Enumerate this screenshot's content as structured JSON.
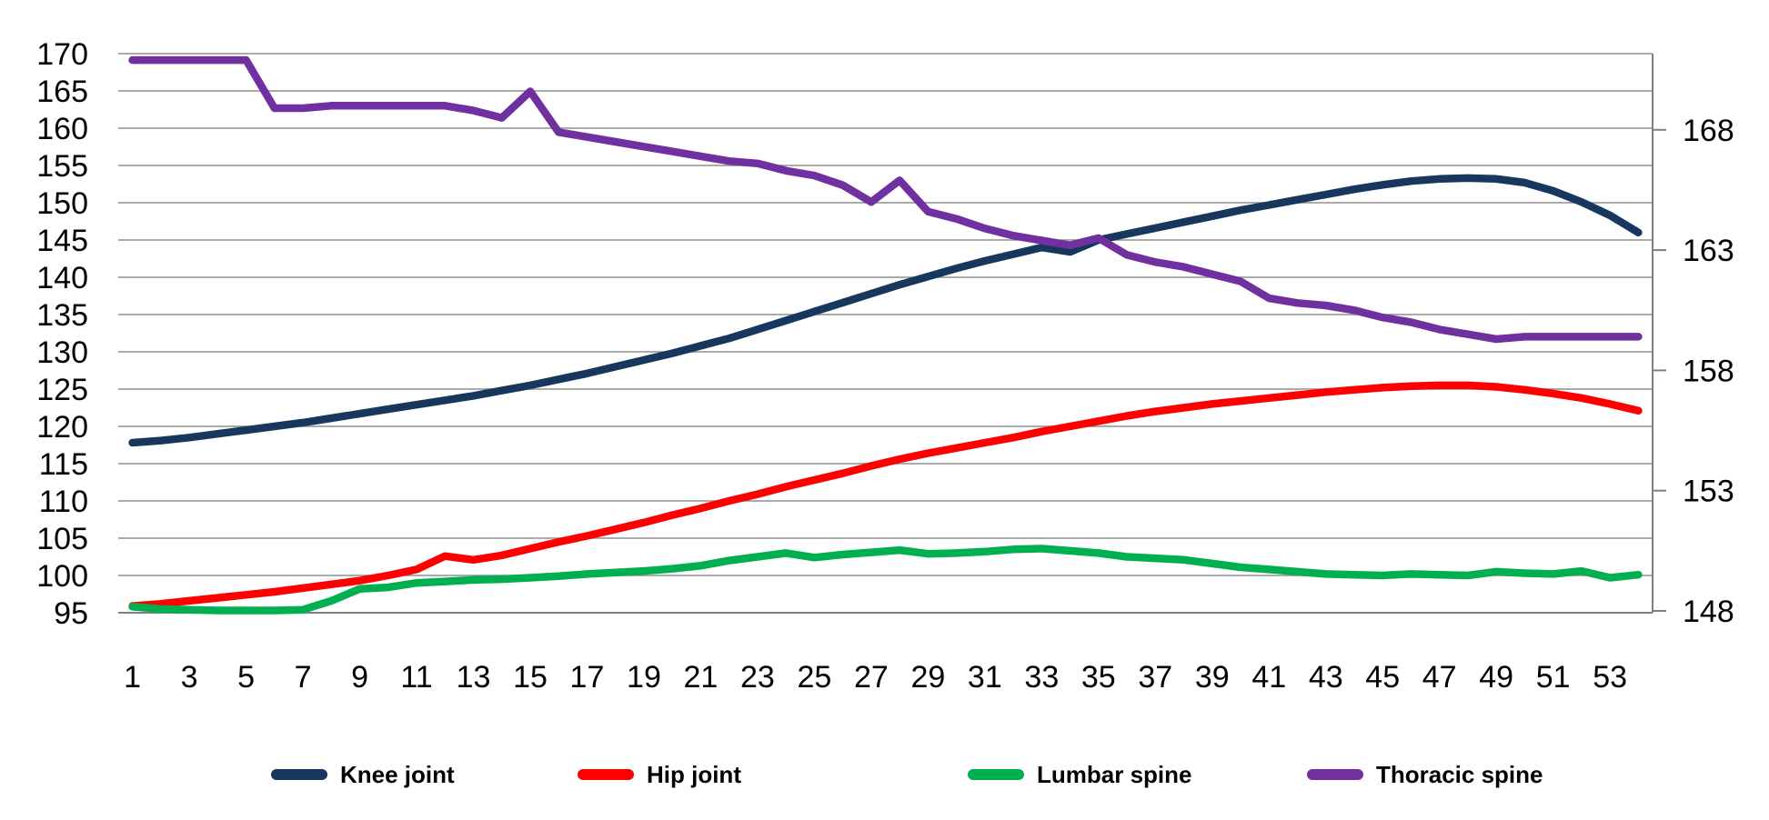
{
  "chart_data": {
    "type": "line",
    "title": "",
    "xlabel": "",
    "ylabel": "",
    "grid": true,
    "legend_position": "bottom",
    "x": [
      1,
      2,
      3,
      4,
      5,
      6,
      7,
      8,
      9,
      10,
      11,
      12,
      13,
      14,
      15,
      16,
      17,
      18,
      19,
      20,
      21,
      22,
      23,
      24,
      25,
      26,
      27,
      28,
      29,
      30,
      31,
      32,
      33,
      34,
      35,
      36,
      37,
      38,
      39,
      40,
      41,
      42,
      43,
      44,
      45,
      46,
      47,
      48,
      49,
      50,
      51,
      52,
      53,
      54
    ],
    "x_tick_labels": [
      "1",
      "3",
      "5",
      "7",
      "9",
      "11",
      "13",
      "15",
      "17",
      "19",
      "21",
      "23",
      "25",
      "27",
      "29",
      "31",
      "33",
      "35",
      "37",
      "39",
      "41",
      "43",
      "45",
      "47",
      "49",
      "51",
      "53"
    ],
    "left_axis": {
      "min": 95,
      "max": 170,
      "step": 5,
      "tick_labels": [
        "95",
        "100",
        "105",
        "110",
        "115",
        "120",
        "125",
        "130",
        "135",
        "140",
        "145",
        "150",
        "155",
        "160",
        "165",
        "170"
      ]
    },
    "right_axis": {
      "ticks": [
        148,
        153,
        158,
        163,
        168
      ],
      "tick_labels": [
        "148",
        "153",
        "158",
        "163",
        "168"
      ]
    },
    "series": [
      {
        "name": "Knee joint",
        "color": "#17375E",
        "axis": "left",
        "values": [
          117.8,
          118.1,
          118.5,
          119.0,
          119.5,
          120.0,
          120.5,
          121.1,
          121.7,
          122.3,
          122.9,
          123.5,
          124.1,
          124.8,
          125.5,
          126.3,
          127.1,
          128.0,
          128.9,
          129.8,
          130.8,
          131.8,
          133.0,
          134.2,
          135.4,
          136.6,
          137.8,
          139.0,
          140.1,
          141.2,
          142.2,
          143.1,
          144.0,
          143.4,
          145.0,
          145.8,
          146.6,
          147.4,
          148.2,
          149.0,
          149.7,
          150.4,
          151.1,
          151.8,
          152.4,
          152.9,
          153.2,
          153.3,
          153.2,
          152.7,
          151.6,
          150.1,
          148.3,
          146.0
        ]
      },
      {
        "name": "Hip joint",
        "color": "#FF0000",
        "axis": "left",
        "values": [
          95.9,
          96.2,
          96.6,
          97.0,
          97.4,
          97.8,
          98.3,
          98.8,
          99.3,
          100.0,
          100.8,
          102.6,
          102.1,
          102.7,
          103.6,
          104.5,
          105.3,
          106.2,
          107.1,
          108.1,
          109.0,
          110.0,
          110.9,
          111.9,
          112.8,
          113.7,
          114.7,
          115.6,
          116.4,
          117.1,
          117.8,
          118.5,
          119.3,
          120.0,
          120.7,
          121.4,
          122.0,
          122.5,
          123.0,
          123.4,
          123.8,
          124.2,
          124.6,
          124.9,
          125.2,
          125.4,
          125.5,
          125.5,
          125.3,
          124.9,
          124.4,
          123.8,
          123.0,
          122.1
        ]
      },
      {
        "name": "Lumbar spine",
        "color": "#00B050",
        "axis": "left",
        "values": [
          95.8,
          95.5,
          95.4,
          95.3,
          95.3,
          95.3,
          95.4,
          96.6,
          98.2,
          98.4,
          99.0,
          99.2,
          99.4,
          99.5,
          99.7,
          99.9,
          100.2,
          100.4,
          100.6,
          100.9,
          101.3,
          102.0,
          102.5,
          103.0,
          102.4,
          102.8,
          103.1,
          103.4,
          102.9,
          103.0,
          103.2,
          103.5,
          103.6,
          103.3,
          103.0,
          102.5,
          102.3,
          102.1,
          101.6,
          101.1,
          100.8,
          100.5,
          100.2,
          100.1,
          100.0,
          100.2,
          100.1,
          100.0,
          100.5,
          100.3,
          100.2,
          100.6,
          99.7,
          100.1
        ]
      },
      {
        "name": "Thoracic spine",
        "color": "#7030A0",
        "axis": "right",
        "values": [
          170.9,
          170.9,
          170.9,
          170.9,
          170.9,
          168.9,
          168.9,
          169.0,
          169.0,
          169.0,
          169.0,
          169.0,
          168.8,
          168.5,
          169.6,
          167.9,
          167.7,
          167.5,
          167.3,
          167.1,
          166.9,
          166.7,
          166.6,
          166.3,
          166.1,
          165.7,
          165.0,
          165.9,
          164.6,
          164.3,
          163.9,
          163.6,
          163.4,
          163.2,
          163.5,
          162.8,
          162.5,
          162.3,
          162.0,
          161.7,
          161.0,
          160.8,
          160.7,
          160.5,
          160.2,
          160.0,
          159.7,
          159.5,
          159.3,
          159.4,
          159.4,
          159.4,
          159.4,
          159.4
        ]
      }
    ]
  },
  "legend": {
    "items": [
      {
        "label": "Knee joint",
        "color": "#17375E"
      },
      {
        "label": "Hip joint",
        "color": "#FF0000"
      },
      {
        "label": "Lumbar spine",
        "color": "#00B050"
      },
      {
        "label": "Thoracic spine",
        "color": "#7030A0"
      }
    ]
  },
  "colors": {
    "gridline": "#8f8f8f",
    "axis": "#7f7f7f",
    "text": "#000000",
    "background": "#ffffff"
  }
}
